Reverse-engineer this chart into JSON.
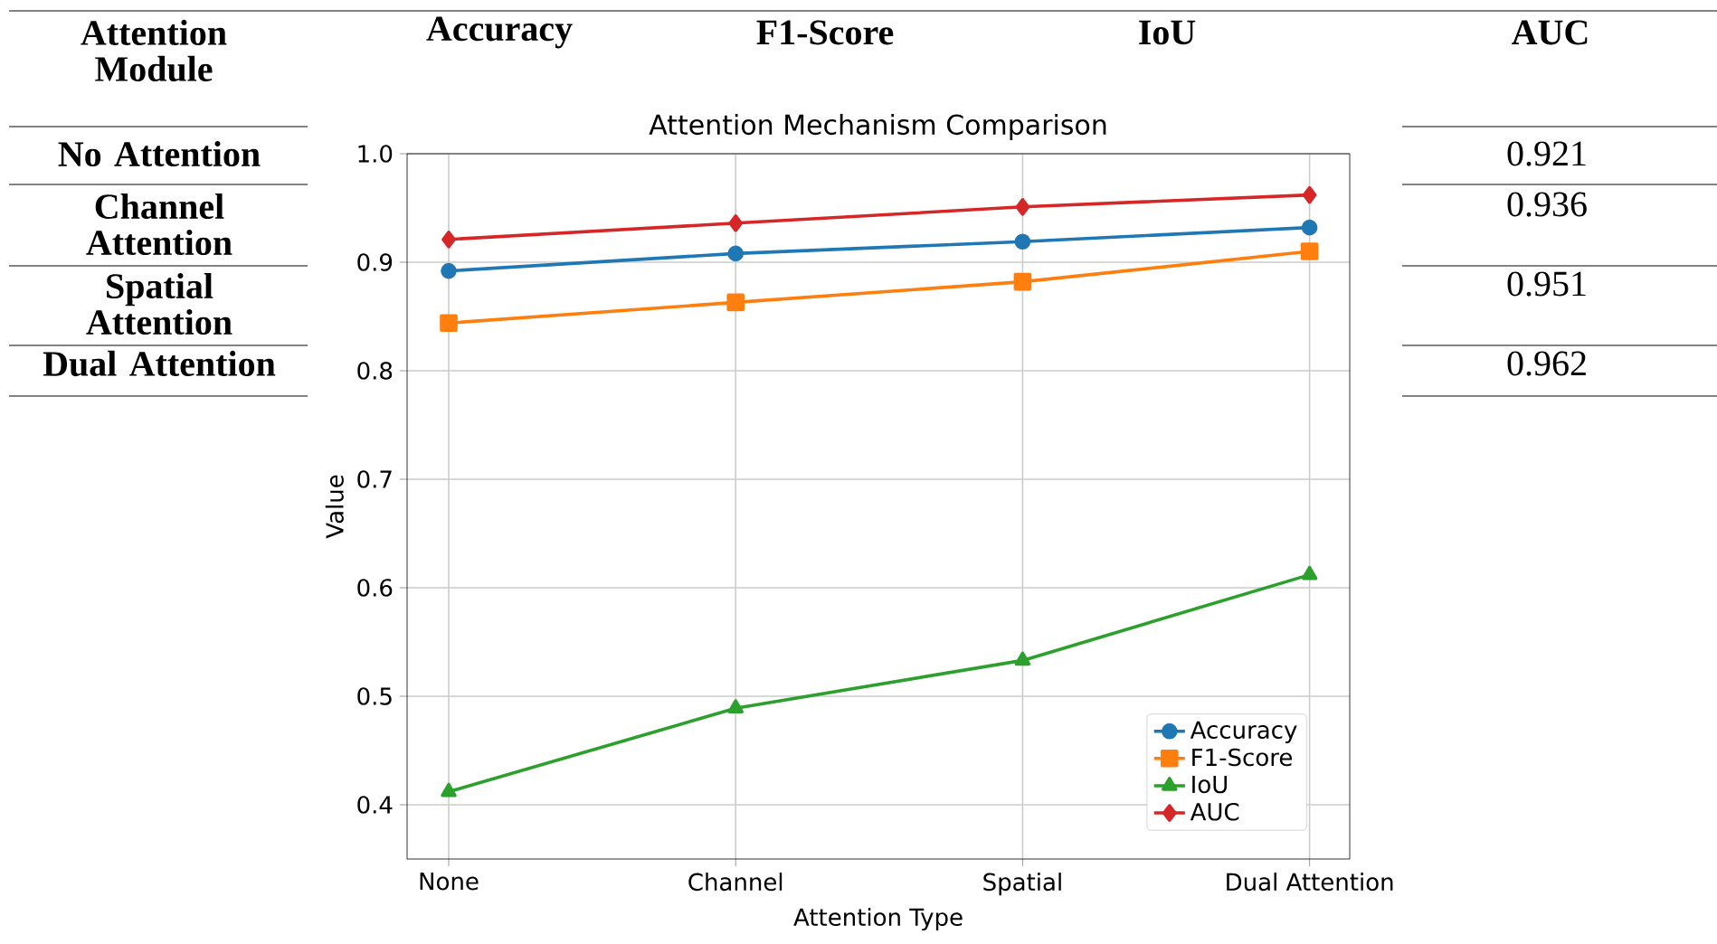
{
  "chart_data": {
    "type": "line",
    "title": "Attention Mechanism Comparison",
    "xlabel": "Attention Type",
    "ylabel": "Value",
    "categories": [
      "None",
      "Channel",
      "Spatial",
      "Dual Attention"
    ],
    "series": [
      {
        "name": "Accuracy",
        "color": "#1f77b4",
        "marker": "circle",
        "values": [
          0.892,
          0.908,
          0.919,
          0.932
        ]
      },
      {
        "name": "F1-Score",
        "color": "#ff7f0e",
        "marker": "square",
        "values": [
          0.844,
          0.863,
          0.882,
          0.91
        ]
      },
      {
        "name": "IoU",
        "color": "#2ca02c",
        "marker": "triangle",
        "values": [
          0.412,
          0.489,
          0.533,
          0.612
        ]
      },
      {
        "name": "AUC",
        "color": "#d62728",
        "marker": "diamond",
        "values": [
          0.921,
          0.936,
          0.951,
          0.962
        ]
      }
    ],
    "ylim": [
      0.35,
      1.0
    ],
    "yticks": [
      0.4,
      0.5,
      0.6,
      0.7,
      0.8,
      0.9,
      {
        "value": 1.0,
        "label": "1.0"
      }
    ],
    "grid": true,
    "legend": "bottom right",
    "line_style": "solid",
    "annotations": [
      "Attention Module",
      "Accuracy",
      "F1-Score",
      "IoU",
      "AUC",
      "No Attention",
      "Channel Attention",
      "Spatial Attention",
      "Dual Attention",
      "0.921",
      "0.936",
      "0.951",
      "0.962"
    ]
  }
}
